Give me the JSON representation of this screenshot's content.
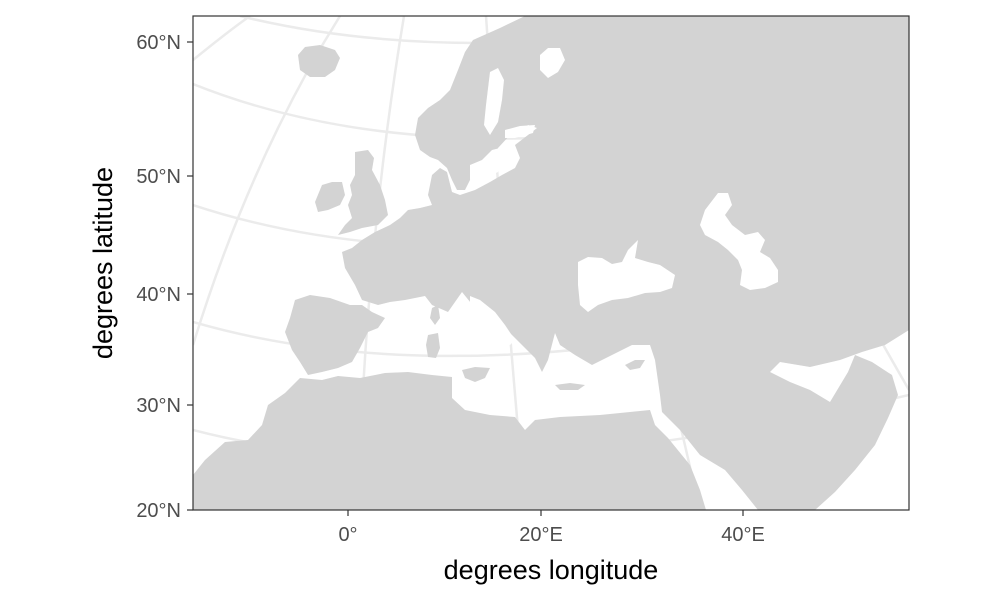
{
  "map": {
    "xlabel": "degrees longitude",
    "ylabel": "degrees latitude",
    "x_ticks": [
      "0°",
      "20°E",
      "40°E"
    ],
    "y_ticks": [
      "60°N",
      "50°N",
      "40°N",
      "30°N",
      "20°N"
    ],
    "land_color": "#d3d3d3",
    "grid_color": "#ebebeb",
    "background": "#ffffff",
    "frame_color": "#333333",
    "grid": true
  }
}
